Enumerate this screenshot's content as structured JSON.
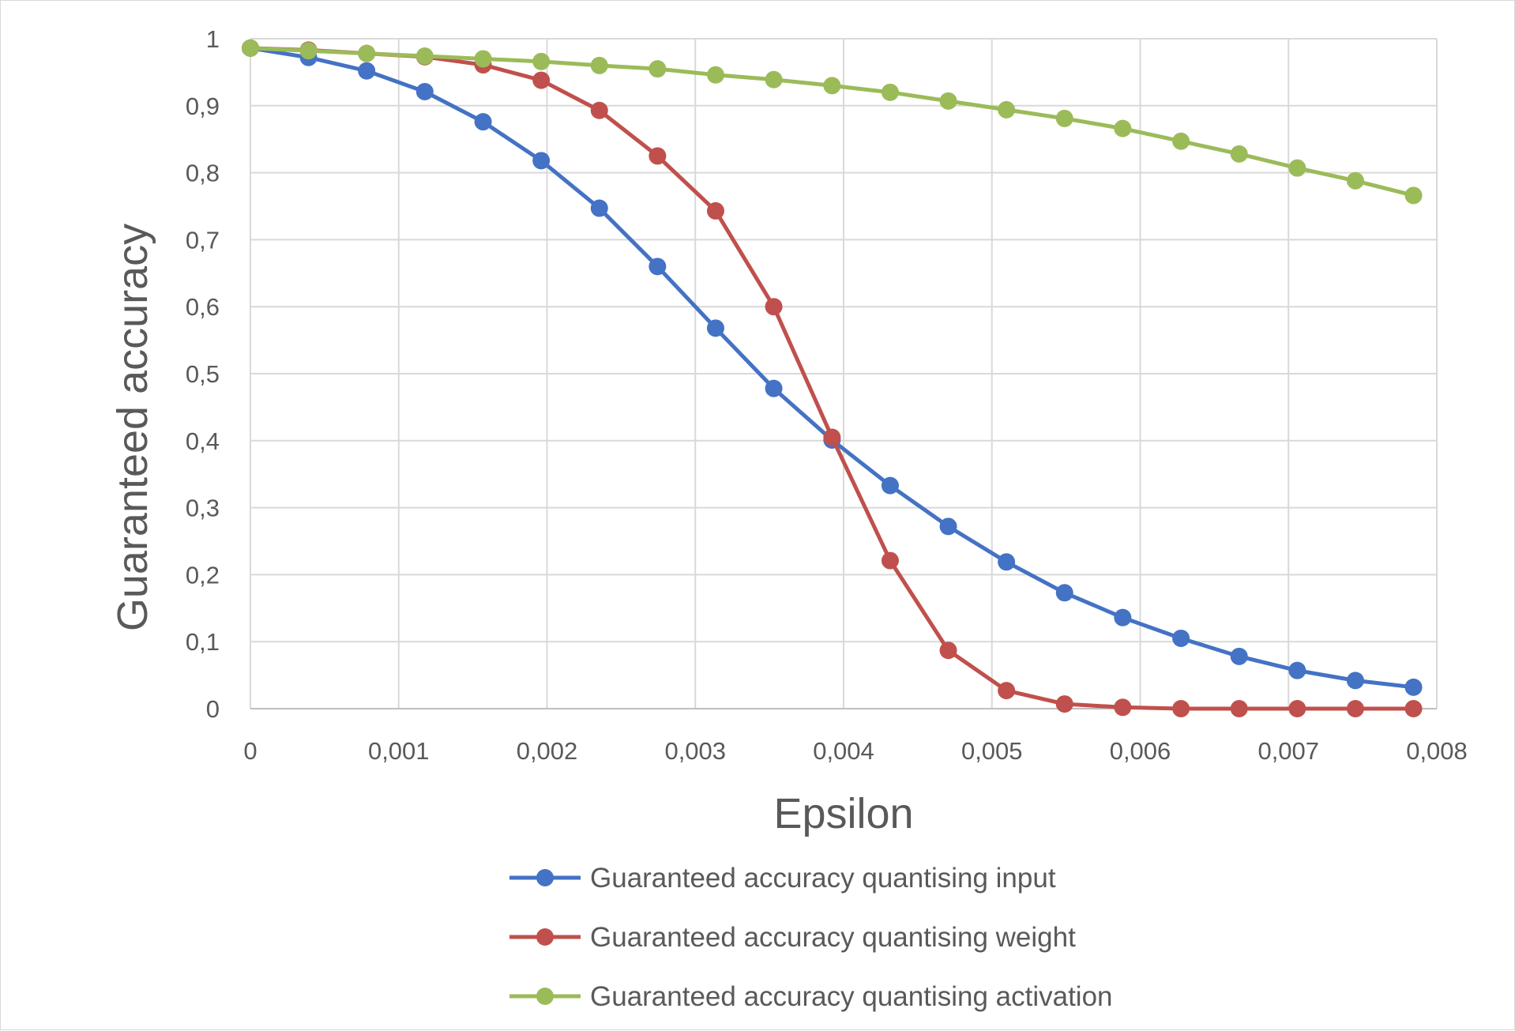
{
  "chart_data": {
    "type": "line",
    "title": "",
    "xlabel": "Epsilon",
    "ylabel": "Guaranteed accuracy",
    "xlim": [
      0,
      0.008
    ],
    "ylim": [
      0,
      1
    ],
    "x_ticks": [
      "0",
      "0,001",
      "0,002",
      "0,003",
      "0,004",
      "0,005",
      "0,006",
      "0,007",
      "0,008"
    ],
    "y_ticks": [
      "0",
      "0,1",
      "0,2",
      "0,3",
      "0,4",
      "0,5",
      "0,6",
      "0,7",
      "0,8",
      "0,9",
      "1"
    ],
    "grid": true,
    "legend_position": "bottom",
    "x": [
      0,
      0.000392,
      0.000784,
      0.001176,
      0.001569,
      0.001961,
      0.002353,
      0.002745,
      0.003137,
      0.003529,
      0.003922,
      0.004314,
      0.004706,
      0.005098,
      0.00549,
      0.005882,
      0.006275,
      0.006667,
      0.007059,
      0.007451,
      0.007843
    ],
    "series": [
      {
        "name": "Guaranteed accuracy quantising input",
        "color": "#4472c4",
        "values": [
          0.986,
          0.972,
          0.952,
          0.921,
          0.876,
          0.818,
          0.747,
          0.66,
          0.568,
          0.478,
          0.401,
          0.333,
          0.272,
          0.219,
          0.173,
          0.136,
          0.105,
          0.078,
          0.057,
          0.042,
          0.032
        ]
      },
      {
        "name": "Guaranteed accuracy quantising weight",
        "color": "#c0504d",
        "values": [
          0.986,
          0.983,
          0.978,
          0.973,
          0.961,
          0.938,
          0.893,
          0.825,
          0.743,
          0.6,
          0.405,
          0.221,
          0.087,
          0.027,
          0.007,
          0.002,
          0.0,
          0.0,
          0.0,
          0.0,
          0.0
        ]
      },
      {
        "name": "Guaranteed accuracy quantising activation",
        "color": "#9bbb59",
        "values": [
          0.986,
          0.982,
          0.978,
          0.974,
          0.97,
          0.966,
          0.96,
          0.955,
          0.946,
          0.939,
          0.93,
          0.92,
          0.907,
          0.894,
          0.881,
          0.866,
          0.847,
          0.828,
          0.807,
          0.788,
          0.766
        ]
      }
    ]
  }
}
